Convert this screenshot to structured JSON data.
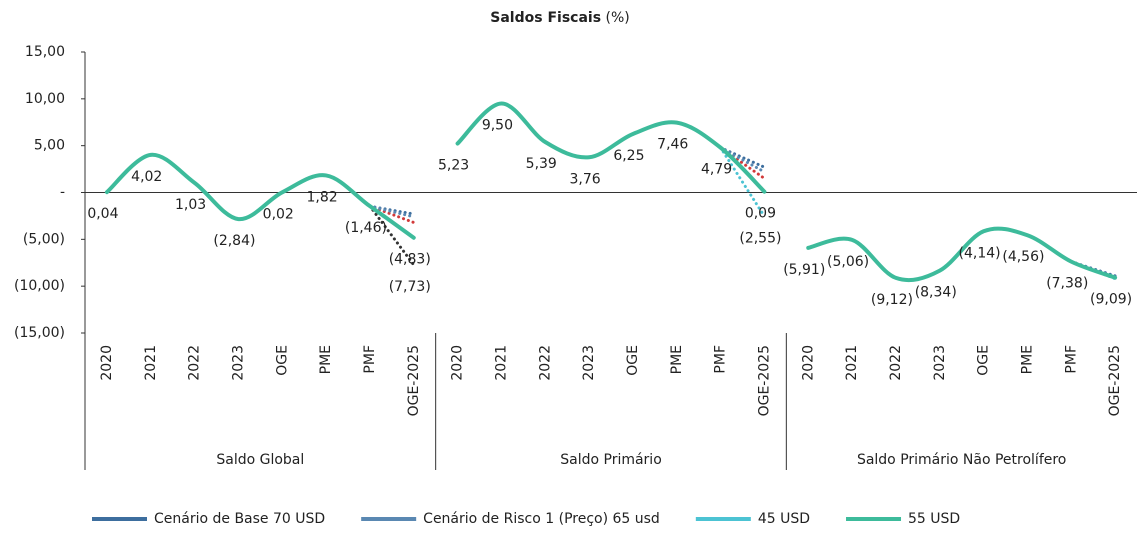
{
  "chart_data": {
    "type": "line",
    "title": "Saldos Fiscais",
    "title_suffix": "(%)",
    "groups": [
      "Saldo Global",
      "Saldo Primário",
      "Saldo Primário Não Petrolífero"
    ],
    "categories": [
      [
        "2020",
        "2021",
        "2022",
        "2023",
        "OGE",
        "PME",
        "PMF",
        "OGE-2025"
      ],
      [
        "2020",
        "2021",
        "2022",
        "2023",
        "OGE",
        "PME",
        "PMF",
        "OGE-2025"
      ],
      [
        "2020",
        "2021",
        "2022",
        "2023",
        "OGE",
        "PME",
        "PMF",
        "OGE-2025"
      ]
    ],
    "ylim": [
      -15,
      15
    ],
    "yticks": [
      {
        "value": 15,
        "label": "15,00"
      },
      {
        "value": 10,
        "label": "10,00"
      },
      {
        "value": 5,
        "label": "5,00"
      },
      {
        "value": 0,
        "label": "-"
      },
      {
        "value": -5,
        "label": "(5,00)"
      },
      {
        "value": -10,
        "label": "(10,00)"
      },
      {
        "value": -15,
        "label": "(15,00)"
      }
    ],
    "series": [
      {
        "color": "#333333",
        "style": "dotted",
        "values": [
          [
            null,
            null,
            null,
            null,
            null,
            null,
            -1.46,
            -7.73
          ],
          [
            null,
            null,
            null,
            null,
            null,
            null,
            null,
            null
          ],
          [
            null,
            null,
            null,
            null,
            null,
            null,
            -7.38,
            -9.0
          ]
        ],
        "value_labels": [
          [
            null,
            null,
            null,
            null,
            null,
            null,
            null,
            "(7,73)"
          ],
          [
            null,
            null,
            null,
            null,
            null,
            null,
            null,
            null
          ],
          [
            null,
            null,
            null,
            null,
            null,
            null,
            null,
            null
          ]
        ]
      },
      {
        "color": "#d23a3a",
        "style": "dotted",
        "values": [
          [
            null,
            null,
            null,
            null,
            null,
            null,
            -1.46,
            -3.2
          ],
          [
            null,
            null,
            null,
            null,
            null,
            null,
            4.79,
            1.5
          ],
          [
            null,
            null,
            null,
            null,
            null,
            null,
            -7.38,
            -9.0
          ]
        ]
      },
      {
        "name": "Cenário de Base 70 USD",
        "color": "#3d6e9e",
        "style": "dotted",
        "values": [
          [
            null,
            null,
            null,
            null,
            null,
            null,
            -1.46,
            -2.3
          ],
          [
            null,
            null,
            null,
            null,
            null,
            null,
            4.79,
            2.7
          ],
          [
            null,
            null,
            null,
            null,
            null,
            null,
            -7.38,
            -8.9
          ]
        ]
      },
      {
        "name": "Cenário de Risco 1 (Preço) 65 usd",
        "color": "#5a88b2",
        "style": "dotted",
        "values": [
          [
            null,
            null,
            null,
            null,
            null,
            null,
            -1.46,
            -2.6
          ],
          [
            null,
            null,
            null,
            null,
            null,
            null,
            4.79,
            2.2
          ],
          [
            null,
            null,
            null,
            null,
            null,
            null,
            -7.38,
            -9.0
          ]
        ]
      },
      {
        "name": "45 USD",
        "color": "#4cc3d3",
        "style": "dotted",
        "values": [
          [
            null,
            null,
            null,
            null,
            null,
            null,
            null,
            null
          ],
          [
            null,
            null,
            null,
            null,
            null,
            null,
            4.79,
            -2.55
          ],
          [
            null,
            null,
            null,
            null,
            null,
            null,
            -7.38,
            -9.2
          ]
        ],
        "value_labels": [
          [
            null,
            null,
            null,
            null,
            null,
            null,
            null,
            null
          ],
          [
            null,
            null,
            null,
            null,
            null,
            null,
            null,
            "(2,55)"
          ],
          [
            null,
            null,
            null,
            null,
            null,
            null,
            null,
            null
          ]
        ]
      },
      {
        "name": "55 USD",
        "color": "#3dbb9b",
        "style": "solid",
        "values": [
          [
            0.04,
            4.02,
            1.03,
            -2.84,
            0.02,
            1.82,
            -1.46,
            -4.83
          ],
          [
            5.23,
            9.5,
            5.39,
            3.76,
            6.25,
            7.46,
            4.79,
            0.09
          ],
          [
            -5.91,
            -5.06,
            -9.12,
            -8.34,
            -4.14,
            -4.56,
            -7.38,
            -9.09
          ]
        ],
        "value_labels": [
          [
            "0,04",
            "4,02",
            "1,03",
            "(2,84)",
            "0,02",
            "1,82",
            "(1,46)",
            "(4,83)"
          ],
          [
            "5,23",
            "9,50",
            "5,39",
            "3,76",
            "6,25",
            "7,46",
            "4,79",
            "0,09"
          ],
          [
            "(5,91)",
            "(5,06)",
            "(9,12)",
            "(8,34)",
            "(4,14)",
            "(4,56)",
            "(7,38)",
            "(9,09)"
          ]
        ]
      }
    ]
  }
}
